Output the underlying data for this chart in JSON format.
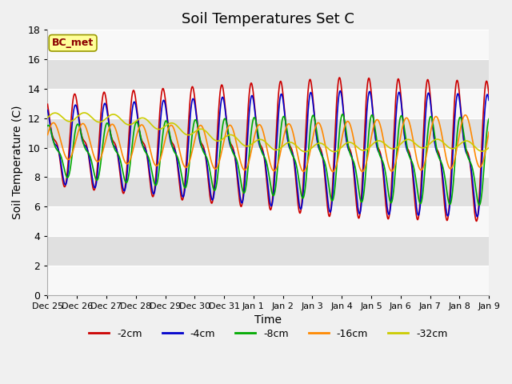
{
  "title": "Soil Temperatures Set C",
  "xlabel": "Time",
  "ylabel": "Soil Temperature (C)",
  "ylim": [
    0,
    18
  ],
  "annotation": "BC_met",
  "line_colors": {
    "-2cm": "#cc0000",
    "-4cm": "#0000cc",
    "-8cm": "#00aa00",
    "-16cm": "#ff8800",
    "-32cm": "#cccc00"
  },
  "legend_labels": [
    "-2cm",
    "-4cm",
    "-8cm",
    "-16cm",
    "-32cm"
  ],
  "background_color": "#f0f0f0",
  "band_light": "#f8f8f8",
  "band_dark": "#e0e0e0",
  "title_fontsize": 13,
  "axis_label_fontsize": 10,
  "tick_fontsize": 8,
  "n_days": 15,
  "day_labels": [
    "Dec 25",
    "Dec 26",
    "Dec 27",
    "Dec 28",
    "Dec 29",
    "Dec 30",
    "Dec 31",
    "Jan 1",
    "Jan 2",
    "Jan 3",
    "Jan 4",
    "Jan 5",
    "Jan 6",
    "Jan 7",
    "Jan 8",
    "Jan 9"
  ]
}
